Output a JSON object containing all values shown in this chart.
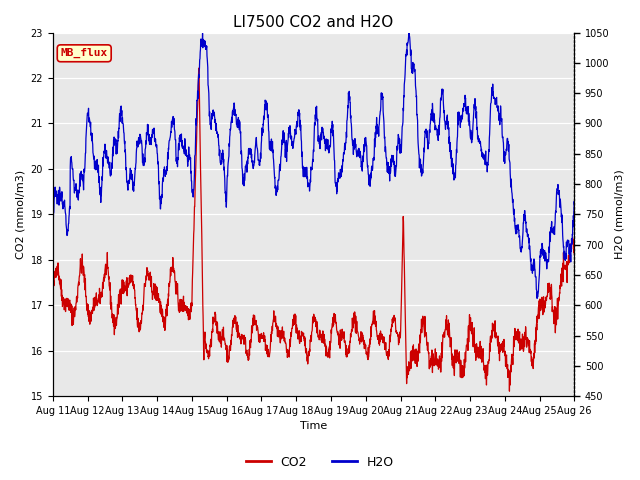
{
  "title": "LI7500 CO2 and H2O",
  "xlabel": "Time",
  "ylabel_left": "CO2 (mmol/m3)",
  "ylabel_right": "H2O (mmol/m3)",
  "ylim_left": [
    15.0,
    23.0
  ],
  "ylim_right": [
    450,
    1050
  ],
  "yticks_left": [
    15.0,
    16.0,
    17.0,
    18.0,
    19.0,
    20.0,
    21.0,
    22.0,
    23.0
  ],
  "yticks_right": [
    450,
    500,
    550,
    600,
    650,
    700,
    750,
    800,
    850,
    900,
    950,
    1000,
    1050
  ],
  "xtick_labels": [
    "Aug 11",
    "Aug 12",
    "Aug 13",
    "Aug 14",
    "Aug 15",
    "Aug 16",
    "Aug 17",
    "Aug 18",
    "Aug 19",
    "Aug 20",
    "Aug 21",
    "Aug 22",
    "Aug 23",
    "Aug 24",
    "Aug 25",
    "Aug 26"
  ],
  "co2_color": "#cc0000",
  "h2o_color": "#0000cc",
  "background_color": "#e8e8e8",
  "fig_background": "#ffffff",
  "annotation_text": "MB_flux",
  "annotation_bg": "#ffffcc",
  "annotation_border": "#cc0000",
  "annotation_text_color": "#cc0000",
  "legend_co2": "CO2",
  "legend_h2o": "H2O",
  "title_fontsize": 11,
  "label_fontsize": 8,
  "tick_fontsize": 7,
  "legend_fontsize": 9,
  "annotation_fontsize": 8
}
